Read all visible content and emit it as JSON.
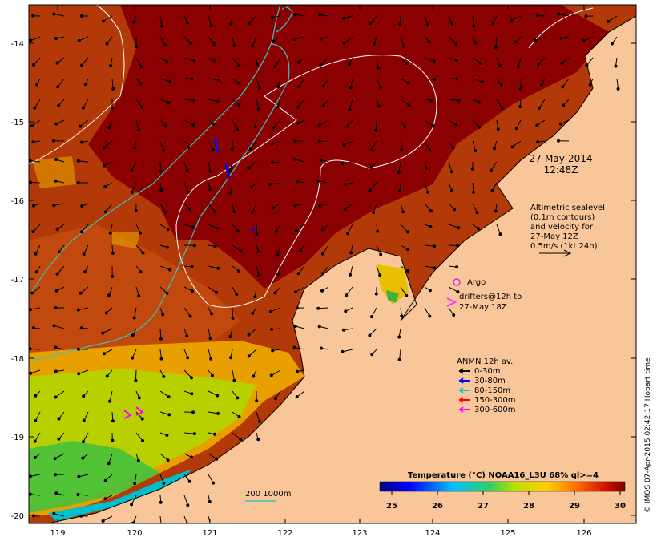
{
  "title": {
    "date": "27-May-2014",
    "time": "12:48Z"
  },
  "altimetry_note": {
    "lines": [
      "Altimetric sealevel",
      "(0.1m contours)",
      "and velocity for",
      "27-May 12Z",
      "0.5m/s (1kt 24h)"
    ]
  },
  "argo": {
    "label": "Argo",
    "color": "#cc33cc"
  },
  "drifters": {
    "lines": [
      "drifters@12h to",
      "27-May 18Z"
    ],
    "color": "#ff33ff"
  },
  "anmn": {
    "title": "ANMN 12h av.",
    "items": [
      {
        "label": "0-30m",
        "color": "#000000"
      },
      {
        "label": "30-80m",
        "color": "#0000ff"
      },
      {
        "label": "80-150m",
        "color": "#00cccc"
      },
      {
        "label": "150-300m",
        "color": "#ff0000"
      },
      {
        "label": "300-600m",
        "color": "#ff00ff"
      }
    ]
  },
  "isobath_label": "200  1000m",
  "colorbar": {
    "title": "Temperature (°C) NOAA16_L3U 68% ql>=4",
    "ticks": [
      "25",
      "26",
      "27",
      "28",
      "29",
      "30"
    ]
  },
  "axes": {
    "lon_ticks": [
      "119",
      "120",
      "121",
      "122",
      "123",
      "124",
      "125",
      "126"
    ],
    "lat_ticks": [
      "-14",
      "-15",
      "-16",
      "-17",
      "-18",
      "-19",
      "-20"
    ]
  },
  "credit": "© IMOS 07-Apr-2015 02:42:17 Hobart time",
  "colors": {
    "land": "#f9c69a",
    "sst_30": "#8b0000",
    "sst_29": "#b13000",
    "sst_28": "#e8a000",
    "sst_27": "#b8d000",
    "sst_26": "#40c040",
    "isobath": "#3cc0c0",
    "sealevel_contour": "#ffffff"
  }
}
